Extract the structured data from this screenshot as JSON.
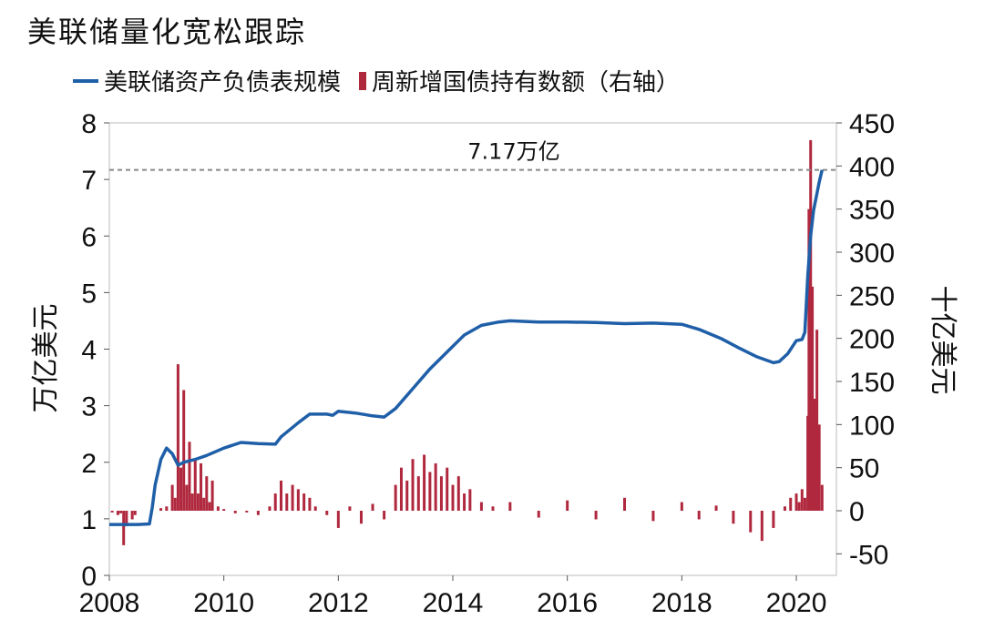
{
  "title": "美联储量化宽松跟踪",
  "legend": {
    "line_label": "美联储资产负债表规模",
    "bar_label": "周新增国债持有数额（右轴）"
  },
  "chart_data": {
    "type": "line+bar",
    "title": "美联储量化宽松跟踪",
    "ylabel_left": "万亿美元",
    "ylabel_right": "十亿美元",
    "ylim_left": [
      0,
      8
    ],
    "ylim_right": [
      -75,
      450
    ],
    "xlim": [
      2008,
      2020.7
    ],
    "x_ticks": [
      "2008",
      "2010",
      "2012",
      "2014",
      "2016",
      "2018",
      "2020"
    ],
    "y_left_ticks": [
      "0",
      "1",
      "2",
      "3",
      "4",
      "5",
      "6",
      "7",
      "8"
    ],
    "y_right_ticks": [
      "-50",
      "0",
      "50",
      "100",
      "150",
      "200",
      "250",
      "300",
      "350",
      "400",
      "450"
    ],
    "annotation": {
      "text": "7.17万亿",
      "value": 7.17
    },
    "colors": {
      "line": "#1f5fa8",
      "bar": "#b0283e",
      "ref_line": "#888888"
    },
    "series": [
      {
        "name": "美联储资产负债表规模",
        "axis": "left",
        "points": [
          [
            2008.0,
            0.9
          ],
          [
            2008.5,
            0.9
          ],
          [
            2008.7,
            0.91
          ],
          [
            2008.75,
            1.2
          ],
          [
            2008.8,
            1.6
          ],
          [
            2008.9,
            2.05
          ],
          [
            2009.0,
            2.25
          ],
          [
            2009.1,
            2.15
          ],
          [
            2009.2,
            1.95
          ],
          [
            2009.3,
            2.0
          ],
          [
            2009.5,
            2.05
          ],
          [
            2009.7,
            2.12
          ],
          [
            2010.0,
            2.25
          ],
          [
            2010.3,
            2.35
          ],
          [
            2010.6,
            2.33
          ],
          [
            2010.9,
            2.32
          ],
          [
            2011.0,
            2.45
          ],
          [
            2011.3,
            2.7
          ],
          [
            2011.5,
            2.85
          ],
          [
            2011.8,
            2.85
          ],
          [
            2011.9,
            2.83
          ],
          [
            2012.0,
            2.9
          ],
          [
            2012.3,
            2.87
          ],
          [
            2012.6,
            2.82
          ],
          [
            2012.8,
            2.8
          ],
          [
            2013.0,
            2.95
          ],
          [
            2013.3,
            3.3
          ],
          [
            2013.6,
            3.65
          ],
          [
            2013.9,
            3.95
          ],
          [
            2014.2,
            4.25
          ],
          [
            2014.5,
            4.42
          ],
          [
            2014.8,
            4.48
          ],
          [
            2015.0,
            4.5
          ],
          [
            2015.5,
            4.48
          ],
          [
            2016.0,
            4.48
          ],
          [
            2016.5,
            4.47
          ],
          [
            2017.0,
            4.45
          ],
          [
            2017.5,
            4.46
          ],
          [
            2018.0,
            4.44
          ],
          [
            2018.3,
            4.35
          ],
          [
            2018.7,
            4.18
          ],
          [
            2019.0,
            4.02
          ],
          [
            2019.3,
            3.87
          ],
          [
            2019.6,
            3.76
          ],
          [
            2019.7,
            3.78
          ],
          [
            2019.85,
            3.92
          ],
          [
            2020.0,
            4.15
          ],
          [
            2020.1,
            4.17
          ],
          [
            2020.15,
            4.3
          ],
          [
            2020.2,
            5.3
          ],
          [
            2020.25,
            6.0
          ],
          [
            2020.3,
            6.45
          ],
          [
            2020.35,
            6.7
          ],
          [
            2020.4,
            6.95
          ],
          [
            2020.45,
            7.17
          ]
        ]
      },
      {
        "name": "周新增国债持有数额（右轴）",
        "axis": "right",
        "bars": [
          [
            2008.0,
            0
          ],
          [
            2008.05,
            -2
          ],
          [
            2008.1,
            0
          ],
          [
            2008.15,
            -5
          ],
          [
            2008.2,
            -3
          ],
          [
            2008.25,
            -40
          ],
          [
            2008.3,
            -18
          ],
          [
            2008.35,
            0
          ],
          [
            2008.4,
            -10
          ],
          [
            2008.45,
            -5
          ],
          [
            2008.9,
            3
          ],
          [
            2009.0,
            5
          ],
          [
            2009.1,
            30
          ],
          [
            2009.15,
            15
          ],
          [
            2009.2,
            170
          ],
          [
            2009.25,
            50
          ],
          [
            2009.3,
            140
          ],
          [
            2009.35,
            30
          ],
          [
            2009.4,
            80
          ],
          [
            2009.45,
            20
          ],
          [
            2009.5,
            60
          ],
          [
            2009.55,
            20
          ],
          [
            2009.6,
            55
          ],
          [
            2009.65,
            15
          ],
          [
            2009.7,
            40
          ],
          [
            2009.75,
            10
          ],
          [
            2009.8,
            35
          ],
          [
            2009.9,
            5
          ],
          [
            2010.0,
            2
          ],
          [
            2010.2,
            -3
          ],
          [
            2010.4,
            -2
          ],
          [
            2010.6,
            -5
          ],
          [
            2010.8,
            5
          ],
          [
            2010.9,
            20
          ],
          [
            2011.0,
            35
          ],
          [
            2011.1,
            20
          ],
          [
            2011.2,
            30
          ],
          [
            2011.3,
            25
          ],
          [
            2011.4,
            20
          ],
          [
            2011.5,
            15
          ],
          [
            2011.6,
            5
          ],
          [
            2011.8,
            -5
          ],
          [
            2012.0,
            -20
          ],
          [
            2012.2,
            5
          ],
          [
            2012.4,
            -15
          ],
          [
            2012.6,
            8
          ],
          [
            2012.8,
            -10
          ],
          [
            2013.0,
            30
          ],
          [
            2013.1,
            50
          ],
          [
            2013.2,
            35
          ],
          [
            2013.3,
            60
          ],
          [
            2013.4,
            40
          ],
          [
            2013.5,
            65
          ],
          [
            2013.6,
            45
          ],
          [
            2013.7,
            55
          ],
          [
            2013.8,
            40
          ],
          [
            2013.9,
            50
          ],
          [
            2014.0,
            30
          ],
          [
            2014.1,
            40
          ],
          [
            2014.2,
            20
          ],
          [
            2014.3,
            25
          ],
          [
            2014.5,
            10
          ],
          [
            2014.7,
            5
          ],
          [
            2015.0,
            10
          ],
          [
            2015.5,
            -8
          ],
          [
            2016.0,
            12
          ],
          [
            2016.5,
            -10
          ],
          [
            2017.0,
            15
          ],
          [
            2017.5,
            -12
          ],
          [
            2018.0,
            10
          ],
          [
            2018.3,
            -10
          ],
          [
            2018.6,
            6
          ],
          [
            2018.9,
            -15
          ],
          [
            2019.2,
            -25
          ],
          [
            2019.4,
            -35
          ],
          [
            2019.6,
            -20
          ],
          [
            2019.8,
            5
          ],
          [
            2019.9,
            15
          ],
          [
            2020.0,
            20
          ],
          [
            2020.05,
            10
          ],
          [
            2020.1,
            25
          ],
          [
            2020.15,
            15
          ],
          [
            2020.2,
            110
          ],
          [
            2020.22,
            350
          ],
          [
            2020.25,
            430
          ],
          [
            2020.28,
            260
          ],
          [
            2020.32,
            130
          ],
          [
            2020.36,
            210
          ],
          [
            2020.4,
            100
          ],
          [
            2020.45,
            30
          ]
        ]
      }
    ]
  }
}
